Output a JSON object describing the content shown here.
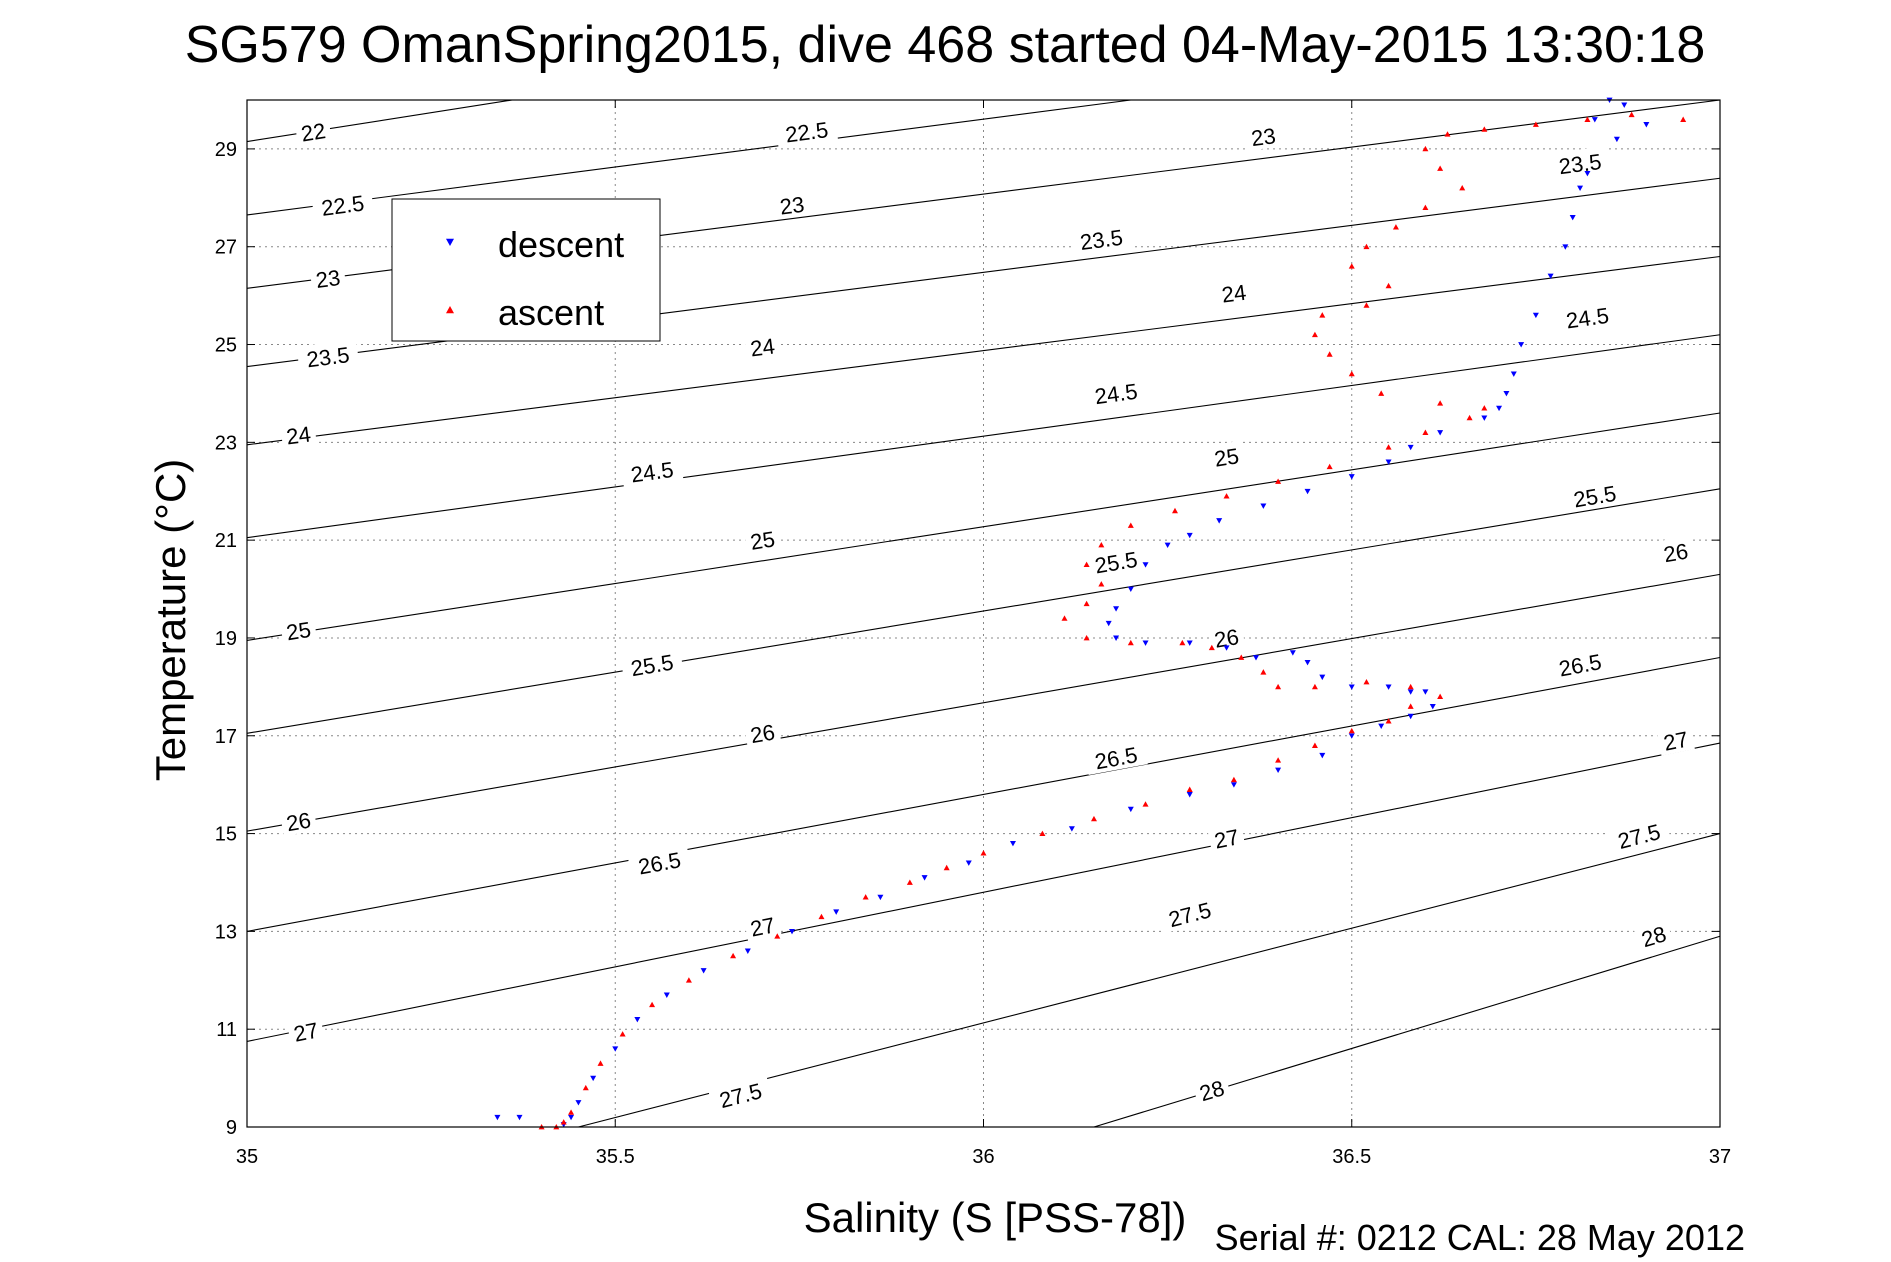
{
  "chart_data": {
    "type": "scatter",
    "title": "SG579 OmanSpring2015, dive 468 started 04-May-2015 13:30:18",
    "xlabel": "Salinity (S [PSS-78])",
    "ylabel": "Temperature (°C)",
    "xlim": [
      35,
      37
    ],
    "ylim": [
      9,
      30
    ],
    "xticks": [
      "35",
      "35.5",
      "36",
      "36.5",
      "37"
    ],
    "yticks": [
      "9",
      "11",
      "13",
      "15",
      "17",
      "19",
      "21",
      "23",
      "25",
      "27",
      "29"
    ],
    "grid": true,
    "legend_position": "top-left",
    "footer": "Serial #: 0212  CAL: 28 May 2012",
    "colors": {
      "descent": "#0000ff",
      "ascent": "#ff0000",
      "contour": "#000000"
    },
    "density_contours": [
      {
        "sigma": 22,
        "label": "22",
        "line": [
          [
            35.0,
            29.15
          ],
          [
            35.36,
            30.0
          ]
        ],
        "label_at": [
          35.09,
          29.35
        ]
      },
      {
        "sigma": 22.5,
        "label": "22.5",
        "line": [
          [
            35.0,
            27.65
          ],
          [
            36.2,
            30.0
          ]
        ],
        "label_at": [
          35.13,
          27.85
        ]
      },
      {
        "sigma": 23,
        "label": "23",
        "line": [
          [
            35.0,
            26.15
          ],
          [
            37.0,
            30.0
          ]
        ],
        "label_at": [
          35.11,
          26.35
        ]
      },
      {
        "sigma": 23.5,
        "label": "23.5",
        "line": [
          [
            35.0,
            24.55
          ],
          [
            37.0,
            28.4
          ]
        ],
        "label_at": [
          35.11,
          24.75
        ]
      },
      {
        "sigma": 24,
        "label": "24",
        "line": [
          [
            35.0,
            22.95
          ],
          [
            37.0,
            26.8
          ]
        ],
        "label_at": [
          35.07,
          23.15
        ]
      },
      {
        "sigma": 24.5,
        "label": "24.5",
        "line": [
          [
            35.0,
            21.05
          ],
          [
            37.0,
            25.2
          ]
        ],
        "label_at": [
          35.55,
          22.4
        ]
      },
      {
        "sigma": 25,
        "label": "25",
        "line": [
          [
            35.0,
            18.95
          ],
          [
            37.0,
            23.6
          ]
        ],
        "label_at": [
          35.07,
          19.15
        ]
      },
      {
        "sigma": 25.5,
        "label": "25.5",
        "line": [
          [
            35.0,
            17.05
          ],
          [
            37.0,
            22.05
          ]
        ],
        "label_at": [
          35.55,
          18.45
        ]
      },
      {
        "sigma": 26,
        "label": "26",
        "line": [
          [
            35.0,
            15.05
          ],
          [
            37.0,
            20.3
          ]
        ],
        "label_at": [
          35.07,
          15.25
        ]
      },
      {
        "sigma": 26.5,
        "label": "26.5",
        "line": [
          [
            35.0,
            13.0
          ],
          [
            37.0,
            18.6
          ]
        ],
        "label_at": [
          35.56,
          14.4
        ]
      },
      {
        "sigma": 27,
        "label": "27",
        "line": [
          [
            35.0,
            10.75
          ],
          [
            37.0,
            16.85
          ]
        ],
        "label_at": [
          35.08,
          10.95
        ]
      },
      {
        "sigma": 27.5,
        "label": "27.5",
        "line": [
          [
            35.45,
            9.0
          ],
          [
            37.0,
            15.0
          ]
        ],
        "label_at": [
          35.67,
          9.65
        ]
      },
      {
        "sigma": 28,
        "label": "28",
        "line": [
          [
            36.15,
            9.0
          ],
          [
            37.0,
            12.9
          ]
        ],
        "label_at": [
          36.31,
          9.75
        ]
      }
    ],
    "contour_labels_extra": [
      {
        "label": "22.5",
        "at": [
          35.76,
          29.35
        ]
      },
      {
        "label": "23",
        "at": [
          35.74,
          27.85
        ]
      },
      {
        "label": "23",
        "at": [
          36.38,
          29.25
        ]
      },
      {
        "label": "23.5",
        "at": [
          36.16,
          27.15
        ]
      },
      {
        "label": "23.5",
        "at": [
          36.81,
          28.7
        ]
      },
      {
        "label": "24",
        "at": [
          35.7,
          24.95
        ]
      },
      {
        "label": "24",
        "at": [
          36.34,
          26.05
        ]
      },
      {
        "label": "24.5",
        "at": [
          36.18,
          24.0
        ]
      },
      {
        "label": "24.5",
        "at": [
          36.82,
          25.55
        ]
      },
      {
        "label": "25",
        "at": [
          35.7,
          21.0
        ]
      },
      {
        "label": "25",
        "at": [
          36.33,
          22.7
        ]
      },
      {
        "label": "25.5",
        "at": [
          36.18,
          20.55
        ]
      },
      {
        "label": "25.5",
        "at": [
          36.83,
          21.9
        ]
      },
      {
        "label": "26",
        "at": [
          35.7,
          17.05
        ]
      },
      {
        "label": "26",
        "at": [
          36.33,
          19.0
        ]
      },
      {
        "label": "26",
        "at": [
          36.94,
          20.75
        ]
      },
      {
        "label": "26.5",
        "at": [
          36.18,
          16.55
        ]
      },
      {
        "label": "26.5",
        "at": [
          36.81,
          18.45
        ]
      },
      {
        "label": "27",
        "at": [
          35.7,
          13.1
        ]
      },
      {
        "label": "27",
        "at": [
          36.33,
          14.9
        ]
      },
      {
        "label": "27",
        "at": [
          36.94,
          16.9
        ]
      },
      {
        "label": "27.5",
        "at": [
          36.28,
          13.35
        ]
      },
      {
        "label": "27.5",
        "at": [
          36.89,
          14.95
        ]
      },
      {
        "label": "28",
        "at": [
          36.91,
          12.9
        ]
      }
    ],
    "series": [
      {
        "name": "descent",
        "marker": "triangle-down",
        "points": [
          [
            36.85,
            30.0
          ],
          [
            36.87,
            29.9
          ],
          [
            36.83,
            29.6
          ],
          [
            36.9,
            29.5
          ],
          [
            36.86,
            29.2
          ],
          [
            36.82,
            28.5
          ],
          [
            36.81,
            28.2
          ],
          [
            36.8,
            27.6
          ],
          [
            36.79,
            27.0
          ],
          [
            36.77,
            26.4
          ],
          [
            36.75,
            25.6
          ],
          [
            36.73,
            25.0
          ],
          [
            36.72,
            24.4
          ],
          [
            36.71,
            24.0
          ],
          [
            36.7,
            23.7
          ],
          [
            36.68,
            23.5
          ],
          [
            36.62,
            23.2
          ],
          [
            36.58,
            22.9
          ],
          [
            36.55,
            22.6
          ],
          [
            36.5,
            22.3
          ],
          [
            36.44,
            22.0
          ],
          [
            36.38,
            21.7
          ],
          [
            36.32,
            21.4
          ],
          [
            36.28,
            21.1
          ],
          [
            36.25,
            20.9
          ],
          [
            36.22,
            20.5
          ],
          [
            36.2,
            20.0
          ],
          [
            36.18,
            19.6
          ],
          [
            36.17,
            19.3
          ],
          [
            36.18,
            19.0
          ],
          [
            36.22,
            18.9
          ],
          [
            36.28,
            18.9
          ],
          [
            36.33,
            18.8
          ],
          [
            36.37,
            18.6
          ],
          [
            36.42,
            18.7
          ],
          [
            36.44,
            18.5
          ],
          [
            36.46,
            18.2
          ],
          [
            36.5,
            18.0
          ],
          [
            36.55,
            18.0
          ],
          [
            36.58,
            17.9
          ],
          [
            36.6,
            17.9
          ],
          [
            36.61,
            17.6
          ],
          [
            36.58,
            17.4
          ],
          [
            36.54,
            17.2
          ],
          [
            36.5,
            17.0
          ],
          [
            36.46,
            16.6
          ],
          [
            36.4,
            16.3
          ],
          [
            36.34,
            16.0
          ],
          [
            36.28,
            15.8
          ],
          [
            36.2,
            15.5
          ],
          [
            36.12,
            15.1
          ],
          [
            36.04,
            14.8
          ],
          [
            35.98,
            14.4
          ],
          [
            35.92,
            14.1
          ],
          [
            35.86,
            13.7
          ],
          [
            35.8,
            13.4
          ],
          [
            35.74,
            13.0
          ],
          [
            35.68,
            12.6
          ],
          [
            35.62,
            12.2
          ],
          [
            35.57,
            11.7
          ],
          [
            35.53,
            11.2
          ],
          [
            35.5,
            10.6
          ],
          [
            35.47,
            10.0
          ],
          [
            35.45,
            9.5
          ],
          [
            35.44,
            9.2
          ],
          [
            35.43,
            9.05
          ],
          [
            35.37,
            9.2
          ],
          [
            35.34,
            9.2
          ]
        ]
      },
      {
        "name": "ascent",
        "marker": "triangle-up",
        "points": [
          [
            36.95,
            29.6
          ],
          [
            36.88,
            29.7
          ],
          [
            36.82,
            29.6
          ],
          [
            36.75,
            29.5
          ],
          [
            36.68,
            29.4
          ],
          [
            36.63,
            29.3
          ],
          [
            36.6,
            29.0
          ],
          [
            36.62,
            28.6
          ],
          [
            36.65,
            28.2
          ],
          [
            36.6,
            27.8
          ],
          [
            36.56,
            27.4
          ],
          [
            36.52,
            27.0
          ],
          [
            36.5,
            26.6
          ],
          [
            36.55,
            26.2
          ],
          [
            36.52,
            25.8
          ],
          [
            36.46,
            25.6
          ],
          [
            36.45,
            25.2
          ],
          [
            36.47,
            24.8
          ],
          [
            36.5,
            24.4
          ],
          [
            36.54,
            24.0
          ],
          [
            36.62,
            23.8
          ],
          [
            36.68,
            23.7
          ],
          [
            36.66,
            23.5
          ],
          [
            36.6,
            23.2
          ],
          [
            36.55,
            22.9
          ],
          [
            36.47,
            22.5
          ],
          [
            36.4,
            22.2
          ],
          [
            36.33,
            21.9
          ],
          [
            36.26,
            21.6
          ],
          [
            36.2,
            21.3
          ],
          [
            36.16,
            20.9
          ],
          [
            36.14,
            20.5
          ],
          [
            36.16,
            20.1
          ],
          [
            36.14,
            19.7
          ],
          [
            36.11,
            19.4
          ],
          [
            36.14,
            19.0
          ],
          [
            36.2,
            18.9
          ],
          [
            36.27,
            18.9
          ],
          [
            36.31,
            18.8
          ],
          [
            36.35,
            18.6
          ],
          [
            36.38,
            18.3
          ],
          [
            36.4,
            18.0
          ],
          [
            36.45,
            18.0
          ],
          [
            36.52,
            18.1
          ],
          [
            36.58,
            18.0
          ],
          [
            36.62,
            17.8
          ],
          [
            36.58,
            17.6
          ],
          [
            36.55,
            17.3
          ],
          [
            36.5,
            17.1
          ],
          [
            36.45,
            16.8
          ],
          [
            36.4,
            16.5
          ],
          [
            36.34,
            16.1
          ],
          [
            36.28,
            15.9
          ],
          [
            36.22,
            15.6
          ],
          [
            36.15,
            15.3
          ],
          [
            36.08,
            15.0
          ],
          [
            36.0,
            14.6
          ],
          [
            35.95,
            14.3
          ],
          [
            35.9,
            14.0
          ],
          [
            35.84,
            13.7
          ],
          [
            35.78,
            13.3
          ],
          [
            35.72,
            12.9
          ],
          [
            35.66,
            12.5
          ],
          [
            35.6,
            12.0
          ],
          [
            35.55,
            11.5
          ],
          [
            35.51,
            10.9
          ],
          [
            35.48,
            10.3
          ],
          [
            35.46,
            9.8
          ],
          [
            35.44,
            9.3
          ],
          [
            35.43,
            9.1
          ],
          [
            35.42,
            9.0
          ],
          [
            35.4,
            9.0
          ]
        ]
      }
    ]
  }
}
